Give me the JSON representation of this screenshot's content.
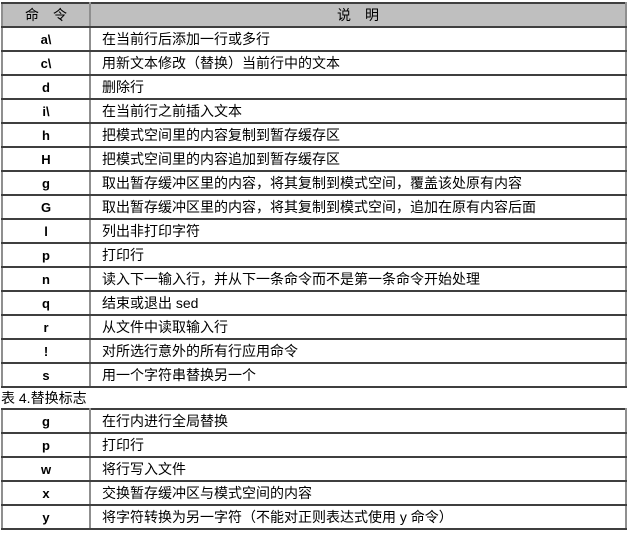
{
  "colors": {
    "background": "#ffffff",
    "header_bg": "#bfbfbf",
    "grid_horizontal": "#3f3f3f",
    "grid_vertical": "#8f8f8f",
    "text": "#000000"
  },
  "commands_table": {
    "headers": {
      "command": "命　令",
      "description": "说　明"
    },
    "rows": [
      {
        "cmd": "a\\",
        "desc": "在当前行后添加一行或多行"
      },
      {
        "cmd": "c\\",
        "desc": "用新文本修改（替换）当前行中的文本"
      },
      {
        "cmd": "d",
        "desc": "删除行"
      },
      {
        "cmd": "i\\",
        "desc": "在当前行之前插入文本"
      },
      {
        "cmd": "h",
        "desc": "把模式空间里的内容复制到暂存缓存区"
      },
      {
        "cmd": "H",
        "desc": "把模式空间里的内容追加到暂存缓存区"
      },
      {
        "cmd": "g",
        "desc": "取出暂存缓冲区里的内容，将其复制到模式空间，覆盖该处原有内容"
      },
      {
        "cmd": "G",
        "desc": "取出暂存缓冲区里的内容，将其复制到模式空间，追加在原有内容后面"
      },
      {
        "cmd": "l",
        "desc": "列出非打印字符"
      },
      {
        "cmd": "p",
        "desc": "打印行"
      },
      {
        "cmd": "n",
        "desc": "读入下一输入行，并从下一条命令而不是第一条命令开始处理"
      },
      {
        "cmd": "q",
        "desc": "结束或退出 sed"
      },
      {
        "cmd": "r",
        "desc": "从文件中读取输入行"
      },
      {
        "cmd": "!",
        "desc": "对所选行意外的所有行应用命令"
      },
      {
        "cmd": "s",
        "desc": "用一个字符串替换另一个"
      }
    ]
  },
  "flags_caption": "表 4.替换标志",
  "flags_table": {
    "rows": [
      {
        "cmd": "g",
        "desc": "在行内进行全局替换"
      },
      {
        "cmd": "p",
        "desc": "打印行"
      },
      {
        "cmd": "w",
        "desc": "将行写入文件"
      },
      {
        "cmd": "x",
        "desc": "交换暂存缓冲区与模式空间的内容"
      },
      {
        "cmd": "y",
        "desc": "将字符转换为另一字符（不能对正则表达式使用 y 命令）"
      }
    ]
  }
}
